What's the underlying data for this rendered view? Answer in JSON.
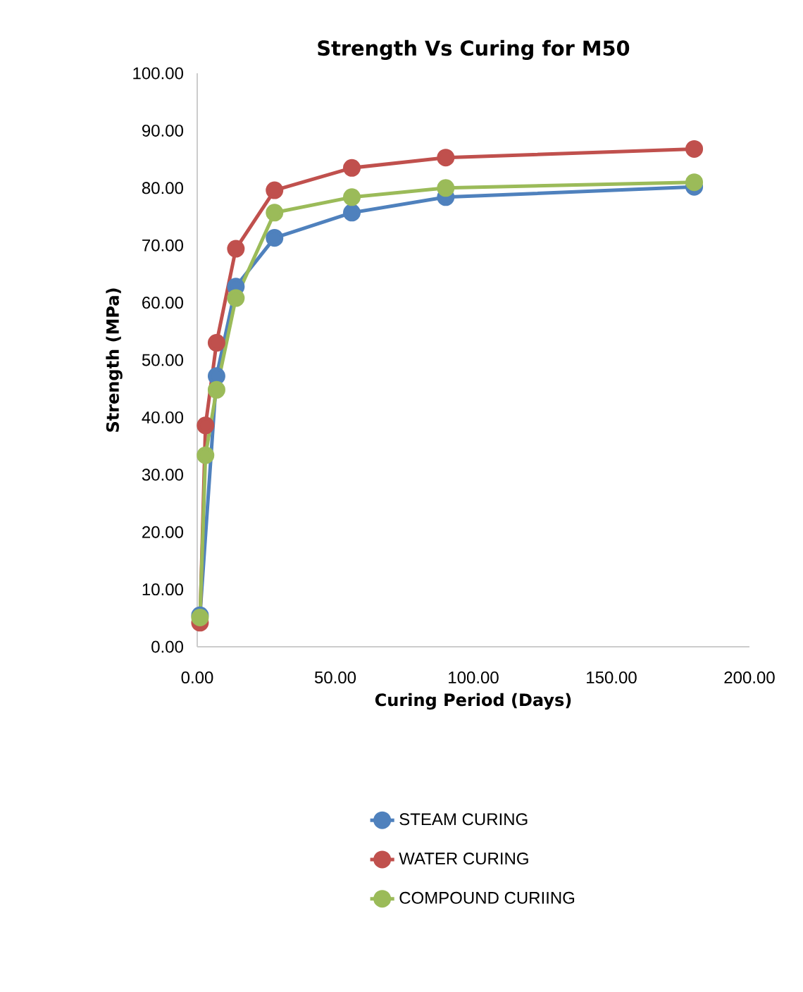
{
  "chart_data": {
    "type": "line",
    "title": "Strength Vs Curing for M50",
    "xlabel": "Curing Period (Days)",
    "ylabel": "Strength (MPa)",
    "x": [
      1,
      3,
      7,
      14,
      28,
      56,
      90,
      180
    ],
    "series": [
      {
        "name": "STEAM CURING",
        "color": "#4f81bd",
        "values": [
          5.5,
          null,
          47.2,
          62.8,
          71.3,
          75.7,
          78.4,
          80.2
        ]
      },
      {
        "name": "WATER CURING",
        "color": "#c0504d",
        "values": [
          4.2,
          38.6,
          53,
          69.4,
          79.6,
          83.5,
          85.3,
          86.8
        ]
      },
      {
        "name": "COMPOUND CURIING",
        "color": "#9bbb59",
        "values": [
          5.1,
          33.4,
          44.8,
          60.8,
          75.7,
          78.4,
          80,
          81
        ]
      }
    ],
    "xlim": [
      0,
      200
    ],
    "ylim": [
      0,
      100
    ],
    "xticks": [
      {
        "value": 0,
        "label": "0.00"
      },
      {
        "value": 50,
        "label": "50.00"
      },
      {
        "value": 100,
        "label": "100.00"
      },
      {
        "value": 150,
        "label": "150.00"
      },
      {
        "value": 200,
        "label": "200.00"
      }
    ],
    "yticks": [
      {
        "value": 0,
        "label": "0.00"
      },
      {
        "value": 10,
        "label": "10.00"
      },
      {
        "value": 20,
        "label": "20.00"
      },
      {
        "value": 30,
        "label": "30.00"
      },
      {
        "value": 40,
        "label": "40.00"
      },
      {
        "value": 50,
        "label": "50.00"
      },
      {
        "value": 60,
        "label": "60.00"
      },
      {
        "value": 70,
        "label": "70.00"
      },
      {
        "value": 80,
        "label": "80.00"
      },
      {
        "value": 90,
        "label": "90.00"
      },
      {
        "value": 100,
        "label": "100.00"
      }
    ],
    "marker": "circle",
    "line_style": "solid",
    "legend": "bottom",
    "grid": false
  }
}
